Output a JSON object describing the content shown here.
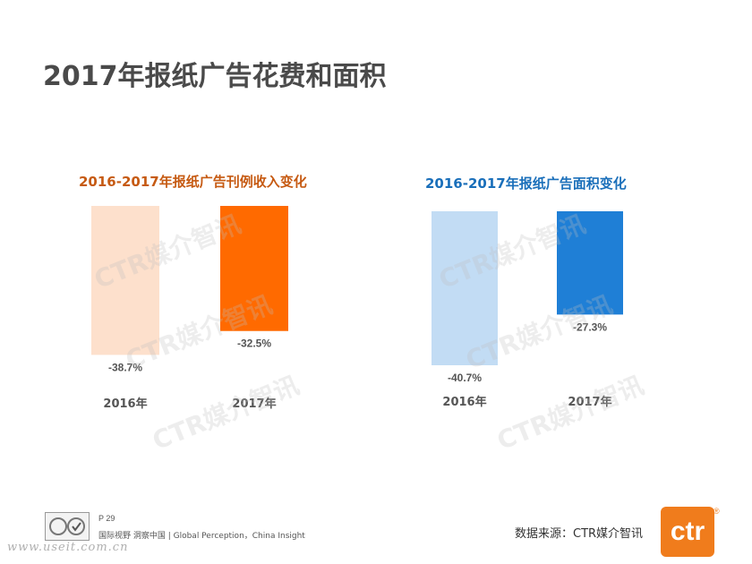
{
  "page": {
    "title": "2017年报纸广告花费和面积",
    "watermark_text": "CTR媒介智讯"
  },
  "chart_data": [
    {
      "type": "bar",
      "title": "2016-2017年报纸广告刊例收入变化",
      "title_color": "#c65a12",
      "categories": [
        "2016年",
        "2017年"
      ],
      "values": [
        -38.7,
        -32.5
      ],
      "value_labels": [
        "-38.7%",
        "-32.5%"
      ],
      "colors": [
        "#fde0cc",
        "#ff6a00"
      ],
      "ylim": [
        -40.7,
        0
      ]
    },
    {
      "type": "bar",
      "title": "2016-2017年报纸广告面积变化",
      "title_color": "#1a6fba",
      "categories": [
        "2016年",
        "2017年"
      ],
      "values": [
        -40.7,
        -27.3
      ],
      "value_labels": [
        "-40.7%",
        "-27.3%"
      ],
      "colors": [
        "#c2dcf4",
        "#1f7fd6"
      ],
      "ylim": [
        -40.7,
        0
      ]
    }
  ],
  "footer": {
    "page_number": "P 29",
    "slogan": "国际视野 洞察中国 | Global Perception，China Insight",
    "url": "www.useit.com.cn",
    "source": "数据来源：CTR媒介智讯",
    "logo_text": "ctr",
    "reg_mark": "®"
  }
}
